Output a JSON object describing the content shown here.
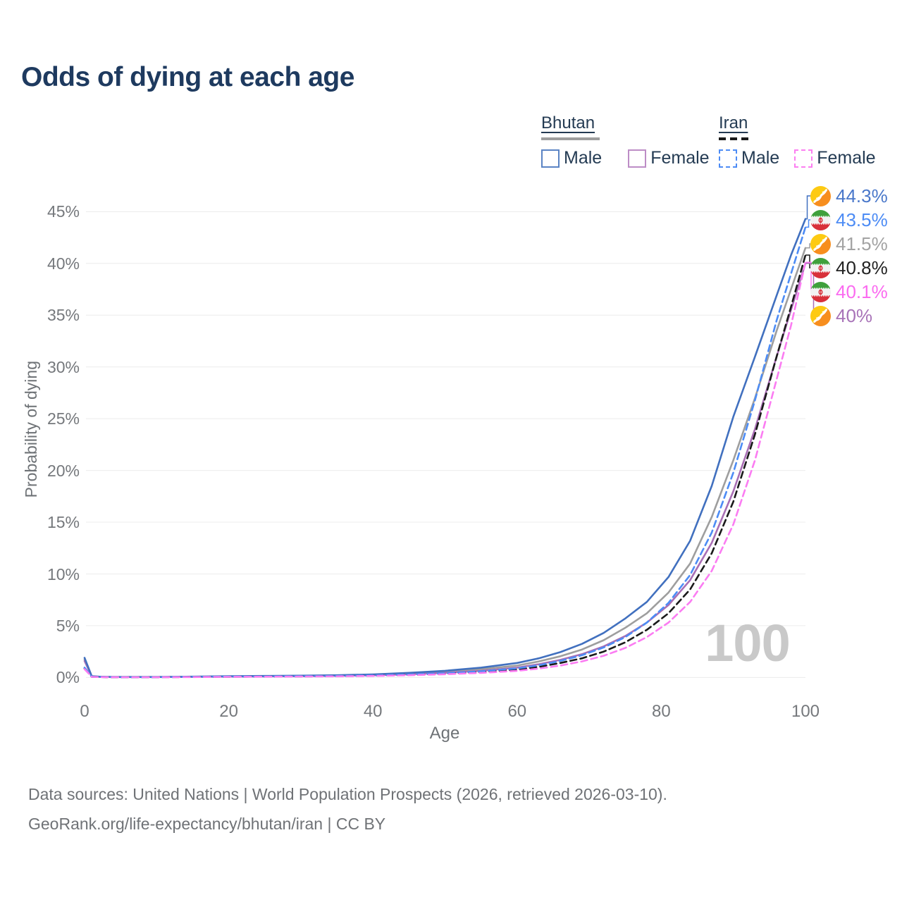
{
  "title": "Odds of dying at each age",
  "legend": {
    "bhutan": {
      "name": "Bhutan",
      "male_label": "Male",
      "female_label": "Female",
      "line_sample_color": "#9e9e9e",
      "line_style": "solid"
    },
    "iran": {
      "name": "Iran",
      "male_label": "Male",
      "female_label": "Female",
      "line_sample_color": "#1a1a1a",
      "line_style": "dashed"
    }
  },
  "watermark": "100",
  "sources": {
    "line1": "Data sources: United Nations | World Population Prospects (2026, retrieved 2026-03-10).",
    "line2": "GeoRank.org/life-expectancy/bhutan/iran | CC BY"
  },
  "chart_data": {
    "type": "line",
    "title": "Odds of dying at each age",
    "xlabel": "Age",
    "ylabel": "Probability of dying",
    "x_axis": {
      "min": 0,
      "max": 100,
      "ticks": [
        0,
        20,
        40,
        60,
        80,
        100
      ]
    },
    "y_axis": {
      "min": 0,
      "max": 45,
      "unit": "%",
      "ticks": [
        0,
        5,
        10,
        15,
        20,
        25,
        30,
        35,
        40,
        45
      ]
    },
    "grid": "horizontal",
    "legend_position": "top-right",
    "hovered_age": 100,
    "ages": [
      0,
      1,
      2,
      3,
      5,
      10,
      15,
      20,
      25,
      30,
      35,
      40,
      45,
      50,
      55,
      60,
      63,
      66,
      69,
      72,
      75,
      78,
      81,
      84,
      87,
      90,
      93,
      96,
      98,
      100
    ],
    "series": [
      {
        "name": "Bhutan Male",
        "country": "Bhutan",
        "sex": "Male",
        "style": "solid",
        "color": "#4170bf",
        "legend_box_color": "#5b84c4",
        "flag": "bhutan",
        "end_label": "44.3%",
        "end_label_color": "#4a78ca",
        "values": [
          1.9,
          0.12,
          0.08,
          0.06,
          0.05,
          0.05,
          0.08,
          0.12,
          0.15,
          0.18,
          0.22,
          0.3,
          0.45,
          0.65,
          0.95,
          1.4,
          1.85,
          2.45,
          3.25,
          4.3,
          5.7,
          7.3,
          9.7,
          13.2,
          18.5,
          25.2,
          31.0,
          36.9,
          40.8,
          44.3
        ]
      },
      {
        "name": "Iran Male",
        "country": "Iran",
        "sex": "Male",
        "style": "dashed",
        "color": "#4d8cf5",
        "legend_box_color": "#4d8cf5",
        "flag": "iran",
        "end_label": "43.5%",
        "end_label_color": "#4d8cf5",
        "values": [
          0.95,
          0.07,
          0.05,
          0.04,
          0.035,
          0.035,
          0.055,
          0.08,
          0.1,
          0.12,
          0.15,
          0.2,
          0.29,
          0.42,
          0.6,
          0.88,
          1.18,
          1.6,
          2.15,
          2.9,
          3.9,
          5.3,
          7.2,
          9.9,
          14.0,
          19.8,
          26.8,
          34.5,
          39.0,
          43.5
        ]
      },
      {
        "name": "Bhutan Both sexes",
        "country": "Bhutan",
        "sex": "Both",
        "style": "solid",
        "color": "#9e9e9e",
        "legend_box_color": "#9e9e9e",
        "flag": "bhutan",
        "end_label": "41.5%",
        "end_label_color": "#a3a3a3",
        "values": [
          1.75,
          0.11,
          0.07,
          0.055,
          0.045,
          0.045,
          0.07,
          0.1,
          0.13,
          0.15,
          0.19,
          0.26,
          0.38,
          0.55,
          0.8,
          1.15,
          1.55,
          2.05,
          2.7,
          3.6,
          4.8,
          6.2,
          8.2,
          11.0,
          15.5,
          21.0,
          27.0,
          33.5,
          37.5,
          41.5
        ]
      },
      {
        "name": "Iran Both sexes",
        "country": "Iran",
        "sex": "Both",
        "style": "dashed",
        "color": "#1a1a1a",
        "legend_box_color": "#1a1a1a",
        "flag": "iran",
        "end_label": "40.8%",
        "end_label_color": "#222222",
        "values": [
          0.88,
          0.065,
          0.045,
          0.037,
          0.032,
          0.032,
          0.05,
          0.07,
          0.09,
          0.105,
          0.13,
          0.175,
          0.255,
          0.37,
          0.53,
          0.77,
          1.03,
          1.4,
          1.85,
          2.5,
          3.4,
          4.6,
          6.2,
          8.5,
          12.0,
          17.0,
          23.5,
          31.0,
          35.8,
          40.8
        ]
      },
      {
        "name": "Iran Female",
        "country": "Iran",
        "sex": "Female",
        "style": "dashed",
        "color": "#fb7cf2",
        "legend_box_color": "#fc7ff1",
        "flag": "iran",
        "end_label": "40.1%",
        "end_label_color": "#fb6bf0",
        "values": [
          0.8,
          0.06,
          0.04,
          0.033,
          0.028,
          0.028,
          0.042,
          0.06,
          0.075,
          0.09,
          0.11,
          0.15,
          0.215,
          0.31,
          0.44,
          0.64,
          0.86,
          1.15,
          1.55,
          2.1,
          2.85,
          3.9,
          5.3,
          7.3,
          10.3,
          14.8,
          21.0,
          28.8,
          34.0,
          40.1
        ]
      },
      {
        "name": "Bhutan Female",
        "country": "Bhutan",
        "sex": "Female",
        "style": "solid",
        "color": "#a96fb5",
        "legend_box_color": "#bd8dc6",
        "flag": "bhutan",
        "end_label": "40%",
        "end_label_color": "#a873b8",
        "values": [
          1.6,
          0.1,
          0.065,
          0.05,
          0.04,
          0.04,
          0.06,
          0.085,
          0.105,
          0.125,
          0.155,
          0.21,
          0.31,
          0.45,
          0.65,
          0.95,
          1.28,
          1.7,
          2.25,
          3.0,
          4.0,
          5.3,
          7.0,
          9.4,
          13.0,
          18.0,
          24.0,
          31.0,
          35.5,
          40.0
        ]
      }
    ]
  }
}
